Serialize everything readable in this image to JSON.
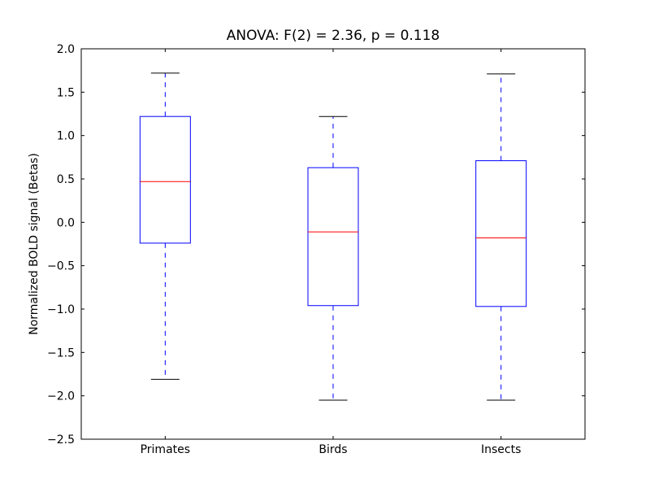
{
  "chart_data": {
    "type": "boxplot",
    "title": "ANOVA: F(2) = 2.36, p = 0.118",
    "xlabel": "",
    "ylabel": "Normalized BOLD signal (Betas)",
    "ylim": [
      -2.5,
      2.0
    ],
    "yticks": [
      -2.5,
      -2.0,
      -1.5,
      -1.0,
      -0.5,
      0.0,
      0.5,
      1.0,
      1.5,
      2.0
    ],
    "ytick_labels": [
      "−2.5",
      "−2.0",
      "−1.5",
      "−1.0",
      "−0.5",
      "0.0",
      "0.5",
      "1.0",
      "1.5",
      "2.0"
    ],
    "categories": [
      "Primates",
      "Birds",
      "Insects"
    ],
    "boxes": [
      {
        "whisker_low": -1.81,
        "q1": -0.24,
        "median": 0.47,
        "q3": 1.22,
        "whisker_high": 1.72
      },
      {
        "whisker_low": -2.05,
        "q1": -0.96,
        "median": -0.11,
        "q3": 0.63,
        "whisker_high": 1.22
      },
      {
        "whisker_low": -2.05,
        "q1": -0.97,
        "median": -0.18,
        "q3": 0.71,
        "whisker_high": 1.71
      }
    ],
    "colors": {
      "box": "#0000ff",
      "median": "#ff0000",
      "cap": "#000000"
    },
    "grid": false
  }
}
